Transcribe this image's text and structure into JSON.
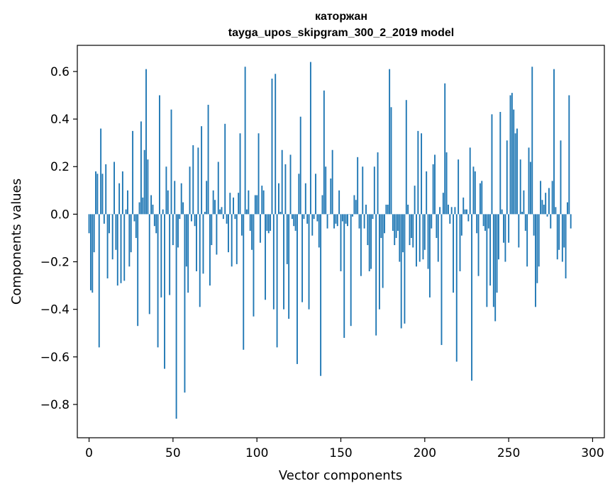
{
  "chart_data": {
    "type": "bar",
    "title": "каторжан",
    "subtitle": "tayga_upos_skipgram_300_2_2019 model",
    "xlabel": "Vector components",
    "ylabel": "Components values",
    "xlim": [
      -7,
      307
    ],
    "ylim": [
      -0.94,
      0.71
    ],
    "xticks": [
      0,
      50,
      100,
      150,
      200,
      250,
      300
    ],
    "xtick_labels": [
      "0",
      "50",
      "100",
      "150",
      "200",
      "250",
      "300"
    ],
    "yticks": [
      -0.8,
      -0.6,
      -0.4,
      -0.2,
      0.0,
      0.2,
      0.4,
      0.6
    ],
    "ytick_labels": [
      "−0.8",
      "−0.6",
      "−0.4",
      "−0.2",
      "0.0",
      "0.2",
      "0.4",
      "0.6"
    ],
    "grid": false,
    "bar_color": "#1f77b4",
    "values": [
      -0.08,
      -0.32,
      -0.33,
      -0.16,
      0.18,
      0.17,
      -0.56,
      0.36,
      0.17,
      -0.04,
      0.21,
      -0.27,
      -0.08,
      0.0,
      -0.19,
      0.22,
      -0.15,
      -0.3,
      0.13,
      -0.29,
      0.18,
      -0.28,
      0.02,
      0.1,
      -0.22,
      -0.16,
      0.35,
      -0.03,
      -0.1,
      -0.47,
      0.05,
      0.39,
      0.07,
      0.27,
      0.61,
      0.23,
      -0.42,
      0.08,
      0.04,
      -0.05,
      -0.08,
      -0.56,
      0.5,
      -0.35,
      0.02,
      -0.65,
      0.2,
      0.1,
      -0.34,
      0.44,
      -0.13,
      0.14,
      -0.86,
      -0.14,
      -0.02,
      0.13,
      0.05,
      -0.75,
      -0.22,
      -0.33,
      0.2,
      -0.03,
      0.29,
      -0.05,
      -0.24,
      0.28,
      -0.39,
      0.37,
      -0.25,
      0.01,
      0.14,
      0.46,
      -0.3,
      -0.13,
      0.1,
      0.06,
      -0.17,
      0.22,
      0.02,
      0.03,
      -0.02,
      0.38,
      -0.04,
      -0.16,
      0.09,
      -0.22,
      0.07,
      -0.02,
      -0.21,
      0.09,
      0.34,
      -0.09,
      -0.57,
      0.62,
      0.02,
      0.1,
      -0.07,
      -0.15,
      -0.43,
      0.08,
      0.08,
      0.34,
      -0.12,
      0.12,
      0.1,
      -0.36,
      -0.07,
      -0.08,
      -0.07,
      0.57,
      -0.4,
      0.59,
      -0.56,
      0.13,
      0.01,
      0.27,
      -0.4,
      0.21,
      -0.21,
      -0.44,
      0.25,
      -0.02,
      -0.05,
      -0.07,
      -0.63,
      0.17,
      0.41,
      -0.37,
      -0.02,
      0.13,
      -0.04,
      -0.4,
      0.64,
      -0.09,
      -0.02,
      0.17,
      -0.03,
      -0.14,
      -0.68,
      0.08,
      0.52,
      0.2,
      -0.06,
      0.0,
      0.15,
      0.27,
      -0.06,
      -0.04,
      -0.05,
      0.1,
      -0.24,
      -0.03,
      -0.52,
      -0.04,
      -0.05,
      0.0,
      -0.47,
      -0.01,
      0.08,
      0.06,
      0.24,
      -0.06,
      -0.26,
      0.2,
      -0.06,
      0.04,
      -0.13,
      -0.24,
      -0.23,
      -0.02,
      0.2,
      -0.51,
      0.26,
      -0.4,
      -0.1,
      -0.31,
      -0.08,
      0.04,
      0.04,
      0.61,
      0.45,
      -0.07,
      -0.13,
      -0.1,
      -0.07,
      -0.2,
      -0.48,
      -0.16,
      -0.46,
      0.48,
      0.04,
      -0.13,
      -0.1,
      -0.14,
      0.12,
      -0.22,
      0.35,
      -0.2,
      0.34,
      -0.19,
      -0.15,
      0.18,
      -0.23,
      -0.35,
      -0.06,
      0.21,
      0.25,
      -0.1,
      -0.2,
      0.03,
      -0.55,
      0.09,
      0.55,
      0.26,
      0.04,
      -0.04,
      0.03,
      -0.33,
      0.03,
      -0.62,
      0.23,
      -0.24,
      -0.09,
      0.07,
      0.02,
      0.02,
      -0.03,
      0.28,
      -0.7,
      0.2,
      0.18,
      -0.08,
      -0.26,
      0.13,
      0.14,
      -0.05,
      -0.07,
      -0.39,
      -0.06,
      -0.3,
      0.42,
      -0.39,
      -0.45,
      -0.33,
      -0.19,
      0.43,
      0.02,
      -0.12,
      -0.2,
      0.31,
      -0.12,
      0.5,
      0.51,
      0.44,
      0.34,
      0.36,
      -0.14,
      0.23,
      0.01,
      0.1,
      -0.07,
      -0.22,
      0.28,
      0.22,
      0.62,
      -0.09,
      -0.39,
      -0.29,
      -0.22,
      0.14,
      0.06,
      0.04,
      0.09,
      -0.01,
      0.11,
      -0.06,
      0.14,
      0.61,
      0.03,
      -0.19,
      -0.15,
      0.31,
      -0.2,
      -0.14,
      -0.27,
      0.05,
      0.5,
      -0.06
    ]
  }
}
